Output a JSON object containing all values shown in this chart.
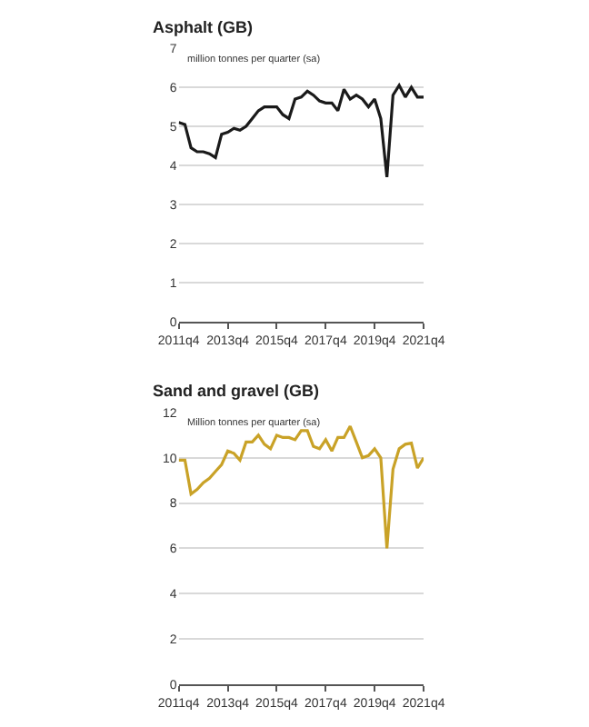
{
  "chart_data": [
    {
      "type": "line",
      "title": "Asphalt (GB)",
      "ylabel": "million tonnes per quarter (sa)",
      "x": [
        "2011-10",
        "2012-01",
        "2012-04",
        "2012-07",
        "2012-10",
        "2013-01",
        "2013-04",
        "2013-07",
        "2013-10",
        "2014-01",
        "2014-04",
        "2014-07",
        "2014-10",
        "2015-01",
        "2015-04",
        "2015-07",
        "2015-10",
        "2016-01",
        "2016-04",
        "2016-07",
        "2016-10",
        "2017-01",
        "2017-04",
        "2017-07",
        "2017-10",
        "2018-01",
        "2018-04",
        "2018-07",
        "2018-10",
        "2019-01",
        "2019-04",
        "2019-07",
        "2019-10",
        "2020-01",
        "2020-04",
        "2020-07",
        "2020-10",
        "2021-01",
        "2021-04",
        "2021-07",
        "2021-10"
      ],
      "series": [
        {
          "color": "#1a1a1a",
          "values": [
            5.1,
            5.05,
            4.45,
            4.35,
            4.35,
            4.3,
            4.2,
            4.8,
            4.85,
            4.95,
            4.9,
            5.0,
            5.2,
            5.4,
            5.5,
            5.5,
            5.5,
            5.3,
            5.2,
            5.7,
            5.75,
            5.9,
            5.8,
            5.65,
            5.6,
            5.6,
            5.4,
            5.95,
            5.7,
            5.8,
            5.7,
            5.5,
            5.7,
            5.2,
            3.7,
            5.8,
            6.05,
            5.75,
            6.0,
            5.75,
            5.75
          ]
        }
      ],
      "xlim": [
        "2011-10",
        "2021-10"
      ],
      "xticks": [
        {
          "value": "2011-10",
          "label": "2011q4"
        },
        {
          "value": "2013-10",
          "label": "2013q4"
        },
        {
          "value": "2015-10",
          "label": "2015q4"
        },
        {
          "value": "2017-10",
          "label": "2017q4"
        },
        {
          "value": "2019-10",
          "label": "2019q4"
        },
        {
          "value": "2021-10",
          "label": "2021q4"
        }
      ],
      "ylim": [
        0,
        7
      ],
      "yticks": [
        0,
        1,
        2,
        3,
        4,
        5,
        6,
        7
      ],
      "grid": "y",
      "marker": "none",
      "line_style": "solid"
    },
    {
      "type": "line",
      "title": "Sand and gravel (GB)",
      "ylabel": "Million tonnes per quarter (sa)",
      "x": [
        "2011-10",
        "2012-01",
        "2012-04",
        "2012-07",
        "2012-10",
        "2013-01",
        "2013-04",
        "2013-07",
        "2013-10",
        "2014-01",
        "2014-04",
        "2014-07",
        "2014-10",
        "2015-01",
        "2015-04",
        "2015-07",
        "2015-10",
        "2016-01",
        "2016-04",
        "2016-07",
        "2016-10",
        "2017-01",
        "2017-04",
        "2017-07",
        "2017-10",
        "2018-01",
        "2018-04",
        "2018-07",
        "2018-10",
        "2019-01",
        "2019-04",
        "2019-07",
        "2019-10",
        "2020-01",
        "2020-04",
        "2020-07",
        "2020-10",
        "2021-01",
        "2021-04",
        "2021-07",
        "2021-10"
      ],
      "series": [
        {
          "color": "#c9a227",
          "values": [
            9.9,
            9.9,
            8.4,
            8.6,
            8.9,
            9.1,
            9.4,
            9.7,
            10.3,
            10.2,
            9.9,
            10.7,
            10.7,
            11.0,
            10.6,
            10.4,
            11.0,
            10.9,
            10.9,
            10.8,
            11.2,
            11.2,
            10.5,
            10.4,
            10.8,
            10.3,
            10.9,
            10.9,
            11.4,
            10.7,
            10.0,
            10.1,
            10.4,
            10.0,
            6.0,
            9.5,
            10.4,
            10.6,
            10.65,
            9.55,
            10.0
          ]
        }
      ],
      "xlim": [
        "2011-10",
        "2021-10"
      ],
      "xticks": [
        {
          "value": "2011-10",
          "label": "2011q4"
        },
        {
          "value": "2013-10",
          "label": "2013q4"
        },
        {
          "value": "2015-10",
          "label": "2015q4"
        },
        {
          "value": "2017-10",
          "label": "2017q4"
        },
        {
          "value": "2019-10",
          "label": "2019q4"
        },
        {
          "value": "2021-10",
          "label": "2021q4"
        }
      ],
      "ylim": [
        0,
        12
      ],
      "yticks": [
        0,
        2,
        4,
        6,
        8,
        10,
        12
      ],
      "grid": "y",
      "marker": "none",
      "line_style": "solid"
    }
  ]
}
